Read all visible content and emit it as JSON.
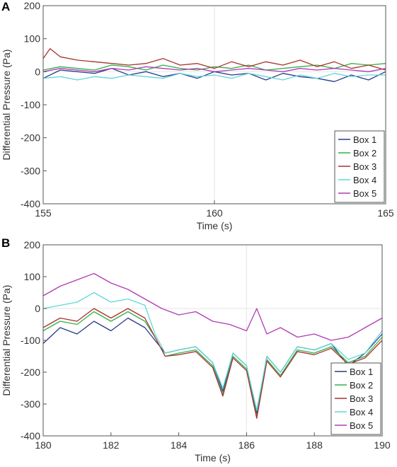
{
  "panels": [
    {
      "letter": "A"
    },
    {
      "letter": "B"
    }
  ],
  "colors": {
    "box1": "#2b3a8c",
    "box2": "#33b04a",
    "box3": "#a8322d",
    "box4": "#5fd9d6",
    "box5": "#b23ab5",
    "axis": "#555555",
    "grid": "#e6e6e6"
  },
  "chart_data": [
    {
      "type": "line",
      "panel": "A",
      "xlabel": "Time (s)",
      "ylabel": "Differential Pressure (Pa)",
      "xlim": [
        155,
        165
      ],
      "ylim": [
        -400,
        200
      ],
      "xticks": [
        155,
        160,
        165
      ],
      "yticks": [
        200,
        100,
        0,
        -100,
        -200,
        -300,
        -400
      ],
      "grid": "major lines at x=160 and y=0",
      "legend": {
        "position": "bottom-right",
        "entries": [
          "Box 1",
          "Box 2",
          "Box 3",
          "Box 4",
          "Box 5"
        ]
      },
      "series": [
        {
          "name": "Box 1",
          "color_key": "box1",
          "x": [
            155,
            155.5,
            156,
            156.5,
            157,
            157.5,
            158,
            158.5,
            159,
            159.5,
            160,
            160.5,
            161,
            161.5,
            162,
            162.5,
            163,
            163.5,
            164,
            164.5,
            165
          ],
          "y": [
            -20,
            5,
            0,
            -5,
            10,
            -10,
            0,
            -15,
            -5,
            -20,
            0,
            -10,
            -5,
            -25,
            -5,
            -15,
            -20,
            -30,
            -10,
            -25,
            0
          ]
        },
        {
          "name": "Box 2",
          "color_key": "box2",
          "x": [
            155,
            155.5,
            156,
            156.5,
            157,
            157.5,
            158,
            158.5,
            159,
            159.5,
            160,
            160.5,
            161,
            161.5,
            162,
            162.5,
            163,
            163.5,
            164,
            164.5,
            165
          ],
          "y": [
            5,
            15,
            10,
            5,
            20,
            15,
            5,
            20,
            10,
            5,
            15,
            10,
            20,
            5,
            10,
            15,
            20,
            10,
            25,
            20,
            25
          ]
        },
        {
          "name": "Box 3",
          "color_key": "box3",
          "x": [
            155,
            155.2,
            155.5,
            156,
            156.5,
            157,
            157.5,
            158,
            158.5,
            159,
            159.5,
            160,
            160.5,
            161,
            161.5,
            162,
            162.5,
            163,
            163.5,
            164,
            164.5,
            165
          ],
          "y": [
            40,
            70,
            45,
            35,
            30,
            25,
            20,
            25,
            40,
            20,
            25,
            10,
            30,
            15,
            30,
            20,
            35,
            15,
            30,
            10,
            20,
            5
          ]
        },
        {
          "name": "Box 4",
          "color_key": "box4",
          "x": [
            155,
            155.5,
            156,
            156.5,
            157,
            157.5,
            158,
            158.5,
            159,
            159.5,
            160,
            160.5,
            161,
            161.5,
            162,
            162.5,
            163,
            163.5,
            164,
            164.5,
            165
          ],
          "y": [
            -20,
            -15,
            -25,
            -15,
            -20,
            -10,
            -15,
            -20,
            -5,
            -15,
            -10,
            -20,
            -5,
            -15,
            -25,
            -10,
            -20,
            -5,
            -15,
            -10,
            -10
          ]
        },
        {
          "name": "Box 5",
          "color_key": "box5",
          "x": [
            155,
            155.5,
            156,
            156.5,
            157,
            157.5,
            158,
            158.5,
            159,
            159.5,
            160,
            160.5,
            161,
            161.5,
            162,
            162.5,
            163,
            163.5,
            164,
            164.5,
            165
          ],
          "y": [
            0,
            10,
            5,
            0,
            10,
            5,
            15,
            10,
            5,
            10,
            0,
            5,
            10,
            5,
            0,
            10,
            5,
            10,
            5,
            0,
            10
          ]
        }
      ]
    },
    {
      "type": "line",
      "panel": "B",
      "xlabel": "Time (s)",
      "ylabel": "Differential Pressure (Pa)",
      "xlim": [
        180,
        190
      ],
      "ylim": [
        -400,
        200
      ],
      "xticks": [
        180,
        182,
        184,
        186,
        188,
        190
      ],
      "yticks": [
        200,
        100,
        0,
        -100,
        -200,
        -300,
        -400
      ],
      "grid": "major lines at x=186 and y=0",
      "legend": {
        "position": "bottom-right",
        "entries": [
          "Box 1",
          "Box 2",
          "Box 3",
          "Box 4",
          "Box 5"
        ]
      },
      "series": [
        {
          "name": "Box 1",
          "color_key": "box1",
          "x": [
            180,
            180.5,
            181,
            181.5,
            182,
            182.5,
            183,
            183.3,
            183.6,
            184,
            184.5,
            185,
            185.3,
            185.6,
            186,
            186.3,
            186.6,
            187,
            187.5,
            188,
            188.5,
            189,
            189.5,
            190
          ],
          "y": [
            -110,
            -60,
            -80,
            -40,
            -70,
            -30,
            -60,
            -100,
            -140,
            -130,
            -120,
            -170,
            -260,
            -140,
            -180,
            -330,
            -150,
            -200,
            -120,
            -130,
            -110,
            -180,
            -140,
            -80
          ]
        },
        {
          "name": "Box 2",
          "color_key": "box2",
          "x": [
            180,
            180.5,
            181,
            181.5,
            182,
            182.5,
            183,
            183.3,
            183.6,
            184,
            184.5,
            185,
            185.3,
            185.6,
            186,
            186.3,
            186.6,
            187,
            187.5,
            188,
            188.5,
            189,
            189.5,
            190
          ],
          "y": [
            -70,
            -40,
            -50,
            -10,
            -40,
            -10,
            -40,
            -90,
            -150,
            -140,
            -130,
            -180,
            -270,
            -150,
            -190,
            -340,
            -160,
            -210,
            -130,
            -140,
            -120,
            -170,
            -150,
            -90
          ]
        },
        {
          "name": "Box 3",
          "color_key": "box3",
          "x": [
            180,
            180.5,
            181,
            181.5,
            182,
            182.5,
            183,
            183.3,
            183.6,
            184,
            184.5,
            185,
            185.3,
            185.6,
            186,
            186.3,
            186.6,
            187,
            187.5,
            188,
            188.5,
            189,
            189.5,
            190
          ],
          "y": [
            -60,
            -30,
            -40,
            0,
            -30,
            0,
            -30,
            -90,
            -150,
            -145,
            -135,
            -185,
            -275,
            -155,
            -195,
            -345,
            -165,
            -215,
            -135,
            -145,
            -125,
            -175,
            -155,
            -100
          ]
        },
        {
          "name": "Box 4",
          "color_key": "box4",
          "x": [
            180,
            180.5,
            181,
            181.5,
            182,
            182.5,
            183,
            183.3,
            183.6,
            184,
            184.5,
            185,
            185.3,
            185.6,
            186,
            186.3,
            186.6,
            187,
            187.5,
            188,
            188.5,
            189,
            189.5,
            190
          ],
          "y": [
            0,
            10,
            20,
            50,
            20,
            30,
            10,
            -80,
            -140,
            -130,
            -120,
            -170,
            -250,
            -140,
            -180,
            -320,
            -150,
            -200,
            -120,
            -130,
            -110,
            -160,
            -140,
            -70
          ]
        },
        {
          "name": "Box 5",
          "color_key": "box5",
          "x": [
            180,
            180.5,
            181,
            181.5,
            182,
            182.5,
            183,
            183.5,
            184,
            184.5,
            185,
            185.5,
            186,
            186.3,
            186.6,
            187,
            187.5,
            188,
            188.5,
            189,
            189.5,
            190
          ],
          "y": [
            40,
            70,
            90,
            110,
            80,
            60,
            30,
            0,
            -20,
            -10,
            -40,
            -50,
            -70,
            0,
            -80,
            -60,
            -90,
            -80,
            -100,
            -90,
            -60,
            -30
          ]
        }
      ]
    }
  ]
}
